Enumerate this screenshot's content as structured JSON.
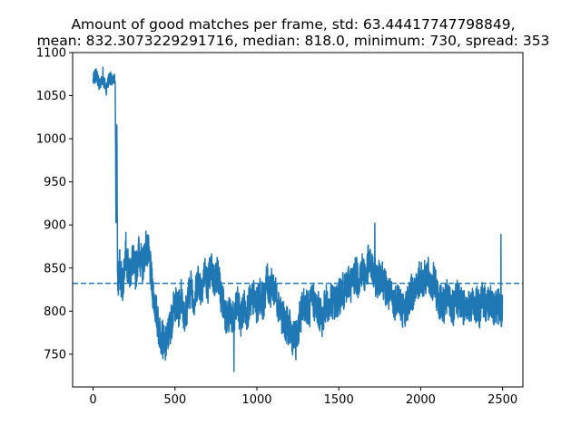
{
  "chart_data": {
    "type": "line",
    "title_line1": "Amount of good matches per frame, std: 63.44417747798849,",
    "title_line2": "mean: 832.3073229291716, median: 818.0, minimum: 730, spread: 353",
    "xlabel": "",
    "ylabel": "",
    "xlim": [
      -125,
      2624
    ],
    "ylim": [
      712,
      1100
    ],
    "x_ticks": [
      0,
      500,
      1000,
      1500,
      2000,
      2500
    ],
    "y_ticks": [
      750,
      800,
      850,
      900,
      950,
      1000,
      1050,
      1100
    ],
    "grid": false,
    "legend": "none",
    "mean_line": 832.3073229291716,
    "frame_count": 2499,
    "minimum": 730,
    "maximum": 1083,
    "series": [
      {
        "color": "#1f77b4",
        "points": [
          [
            0,
            1068
          ],
          [
            20,
            1075
          ],
          [
            40,
            1062
          ],
          [
            60,
            1070
          ],
          [
            80,
            1058
          ],
          [
            100,
            1072
          ],
          [
            120,
            1065
          ],
          [
            135,
            1070
          ],
          [
            140,
            900
          ],
          [
            145,
            995
          ],
          [
            150,
            830
          ],
          [
            160,
            850
          ],
          [
            180,
            830
          ],
          [
            200,
            870
          ],
          [
            220,
            840
          ],
          [
            240,
            860
          ],
          [
            260,
            845
          ],
          [
            280,
            870
          ],
          [
            300,
            850
          ],
          [
            320,
            875
          ],
          [
            340,
            865
          ],
          [
            360,
            830
          ],
          [
            380,
            805
          ],
          [
            400,
            780
          ],
          [
            420,
            770
          ],
          [
            440,
            758
          ],
          [
            460,
            775
          ],
          [
            480,
            790
          ],
          [
            500,
            810
          ],
          [
            520,
            800
          ],
          [
            540,
            820
          ],
          [
            560,
            790
          ],
          [
            580,
            815
          ],
          [
            600,
            830
          ],
          [
            620,
            810
          ],
          [
            640,
            840
          ],
          [
            660,
            825
          ],
          [
            680,
            845
          ],
          [
            700,
            830
          ],
          [
            720,
            850
          ],
          [
            740,
            835
          ],
          [
            760,
            845
          ],
          [
            780,
            820
          ],
          [
            800,
            805
          ],
          [
            820,
            790
          ],
          [
            840,
            800
          ],
          [
            860,
            785
          ],
          [
            880,
            810
          ],
          [
            900,
            790
          ],
          [
            920,
            805
          ],
          [
            940,
            800
          ],
          [
            960,
            810
          ],
          [
            980,
            815
          ],
          [
            1000,
            805
          ],
          [
            1020,
            820
          ],
          [
            1040,
            810
          ],
          [
            1060,
            835
          ],
          [
            1080,
            825
          ],
          [
            1100,
            830
          ],
          [
            1120,
            815
          ],
          [
            1140,
            805
          ],
          [
            1160,
            790
          ],
          [
            1180,
            785
          ],
          [
            1200,
            780
          ],
          [
            1220,
            770
          ],
          [
            1240,
            765
          ],
          [
            1260,
            790
          ],
          [
            1280,
            805
          ],
          [
            1300,
            810
          ],
          [
            1320,
            800
          ],
          [
            1340,
            815
          ],
          [
            1360,
            805
          ],
          [
            1380,
            800
          ],
          [
            1400,
            790
          ],
          [
            1420,
            810
          ],
          [
            1440,
            805
          ],
          [
            1460,
            812
          ],
          [
            1480,
            808
          ],
          [
            1500,
            815
          ],
          [
            1520,
            825
          ],
          [
            1540,
            820
          ],
          [
            1560,
            835
          ],
          [
            1580,
            830
          ],
          [
            1600,
            845
          ],
          [
            1620,
            835
          ],
          [
            1640,
            850
          ],
          [
            1660,
            840
          ],
          [
            1680,
            855
          ],
          [
            1700,
            850
          ],
          [
            1720,
            840
          ],
          [
            1740,
            835
          ],
          [
            1760,
            845
          ],
          [
            1780,
            830
          ],
          [
            1800,
            820
          ],
          [
            1820,
            815
          ],
          [
            1840,
            810
          ],
          [
            1860,
            820
          ],
          [
            1880,
            805
          ],
          [
            1900,
            800
          ],
          [
            1920,
            810
          ],
          [
            1940,
            820
          ],
          [
            1960,
            825
          ],
          [
            1980,
            830
          ],
          [
            2000,
            840
          ],
          [
            2020,
            835
          ],
          [
            2040,
            845
          ],
          [
            2060,
            830
          ],
          [
            2080,
            835
          ],
          [
            2100,
            820
          ],
          [
            2120,
            810
          ],
          [
            2140,
            805
          ],
          [
            2160,
            815
          ],
          [
            2180,
            810
          ],
          [
            2200,
            800
          ],
          [
            2220,
            815
          ],
          [
            2240,
            810
          ],
          [
            2260,
            805
          ],
          [
            2280,
            812
          ],
          [
            2300,
            800
          ],
          [
            2320,
            810
          ],
          [
            2340,
            808
          ],
          [
            2360,
            802
          ],
          [
            2380,
            815
          ],
          [
            2400,
            805
          ],
          [
            2420,
            812
          ],
          [
            2440,
            800
          ],
          [
            2460,
            808
          ],
          [
            2480,
            805
          ],
          [
            2499,
            800
          ]
        ]
      }
    ]
  }
}
